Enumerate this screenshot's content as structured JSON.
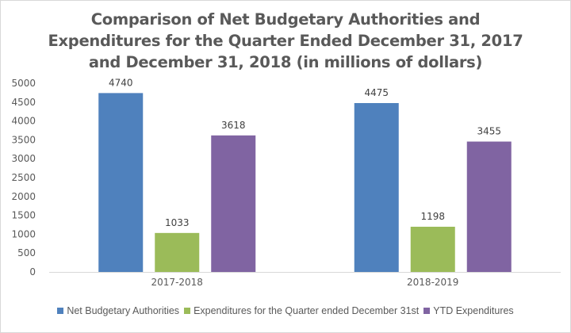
{
  "chart_data": {
    "type": "bar",
    "title_lines": [
      "Comparison of Net Budgetary Authorities and",
      "Expenditures for the Quarter Ended December 31, 2017",
      "and December 31, 2018 (in millions of dollars)"
    ],
    "title": "Comparison of Net Budgetary Authorities and Expenditures for the Quarter Ended December 31, 2017 and December 31, 2018 (in millions of dollars)",
    "xlabel": "",
    "ylabel": "",
    "categories": [
      "2017-2018",
      "2018-2019"
    ],
    "series": [
      {
        "name": "Net Budgetary Authorities",
        "color": "#4f81bd",
        "values": [
          4740,
          4475
        ]
      },
      {
        "name": "Expenditures for the Quarter ended December 31st",
        "color": "#9bbb59",
        "values": [
          1033,
          1198
        ]
      },
      {
        "name": "YTD Expenditures",
        "color": "#8064a2",
        "values": [
          3618,
          3455
        ]
      }
    ],
    "ylim": [
      0,
      5000
    ],
    "yticks": [
      "0",
      "500",
      "1000",
      "1500",
      "2000",
      "2500",
      "3000",
      "3500",
      "4000",
      "4500",
      "5000"
    ],
    "grid": false,
    "data_labels": true,
    "legend_position": "bottom"
  }
}
